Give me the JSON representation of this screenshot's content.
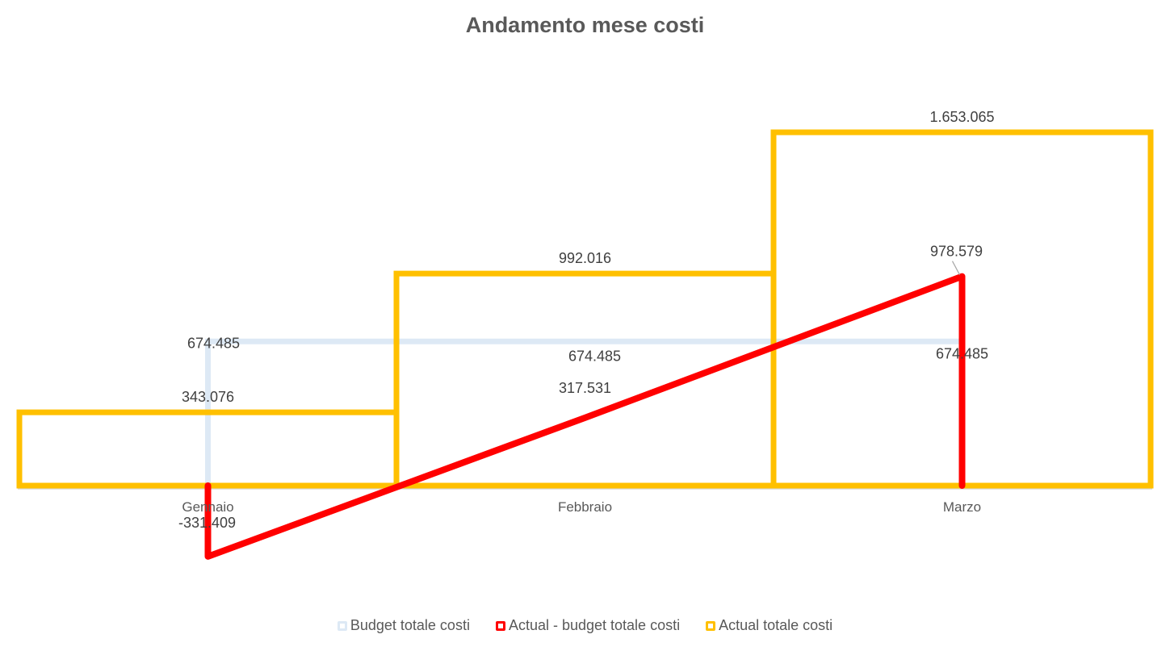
{
  "chart_data": {
    "type": "line",
    "title": "Andamento mese costi",
    "categories": [
      "Gennaio",
      "Febbraio",
      "Marzo"
    ],
    "series": [
      {
        "name": "Budget totale costi",
        "style": "step",
        "color": "#dde9f5",
        "values": [
          674485,
          674485,
          674485
        ],
        "labels": [
          "674.485",
          "674.485",
          "674.485"
        ]
      },
      {
        "name": "Actual - budget totale costi",
        "style": "line",
        "color": "#ff0000",
        "values": [
          -331409,
          317531,
          978579
        ],
        "labels": [
          "-331.409",
          "317.531",
          "978.579"
        ]
      },
      {
        "name": "Actual totale costi",
        "style": "box",
        "color": "#ffc000",
        "values": [
          343076,
          992016,
          1653065
        ],
        "labels": [
          "343.076",
          "992.016",
          "1.653.065"
        ]
      }
    ],
    "ylim": [
      -450000,
      1900000
    ],
    "grid": false,
    "legend_position": "bottom"
  }
}
